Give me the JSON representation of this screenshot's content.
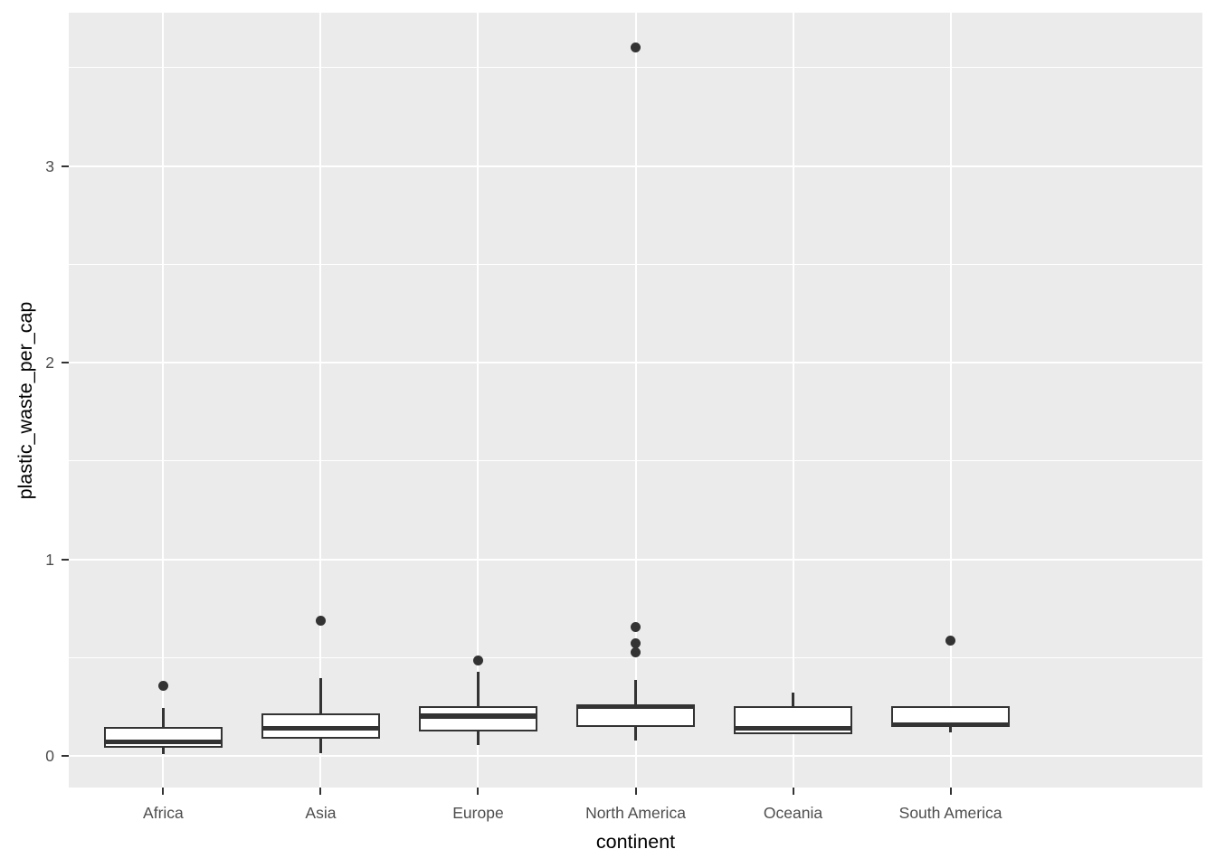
{
  "figure": {
    "background_color": "#ffffff",
    "panel_color": "#EBEBEB",
    "gridline_color": "#FFFFFF",
    "stroke_color": "#333333",
    "tick_label_color": "#4d4d4d",
    "axis_title_color": "#000000"
  },
  "chart_data": {
    "type": "boxplot",
    "title": "",
    "xlabel": "continent",
    "ylabel": "plastic_waste_per_cap",
    "categories": [
      "Africa",
      "Asia",
      "Europe",
      "North America",
      "Oceania",
      "South America"
    ],
    "y_tick_labels": [
      "0",
      "1",
      "2",
      "3"
    ],
    "y_ticks": [
      0,
      1,
      2,
      3
    ],
    "y_minor_gridlines": [
      0.5,
      1.5,
      2.5,
      3.5
    ],
    "ylim": [
      -0.16,
      3.78
    ],
    "grid": true,
    "legend": false,
    "series": [
      {
        "category": "Africa",
        "lower_whisker": 0.011,
        "q1": 0.04,
        "median": 0.071,
        "q3": 0.15,
        "upper_whisker": 0.245,
        "outliers": [
          0.357
        ]
      },
      {
        "category": "Asia",
        "lower_whisker": 0.016,
        "q1": 0.089,
        "median": 0.142,
        "q3": 0.218,
        "upper_whisker": 0.398,
        "outliers": [
          0.689
        ]
      },
      {
        "category": "Europe",
        "lower_whisker": 0.058,
        "q1": 0.126,
        "median": 0.203,
        "q3": 0.253,
        "upper_whisker": 0.429,
        "outliers": [
          0.486
        ]
      },
      {
        "category": "North America",
        "lower_whisker": 0.079,
        "q1": 0.147,
        "median": 0.25,
        "q3": 0.264,
        "upper_whisker": 0.386,
        "outliers": [
          0.528,
          0.571,
          0.658,
          3.601
        ]
      },
      {
        "category": "Oceania",
        "lower_whisker": 0.112,
        "q1": 0.112,
        "median": 0.142,
        "q3": 0.253,
        "upper_whisker": 0.325,
        "outliers": []
      },
      {
        "category": "South America",
        "lower_whisker": 0.12,
        "q1": 0.148,
        "median": 0.16,
        "q3": 0.253,
        "upper_whisker": 0.254,
        "outliers": [
          0.586
        ]
      }
    ]
  }
}
